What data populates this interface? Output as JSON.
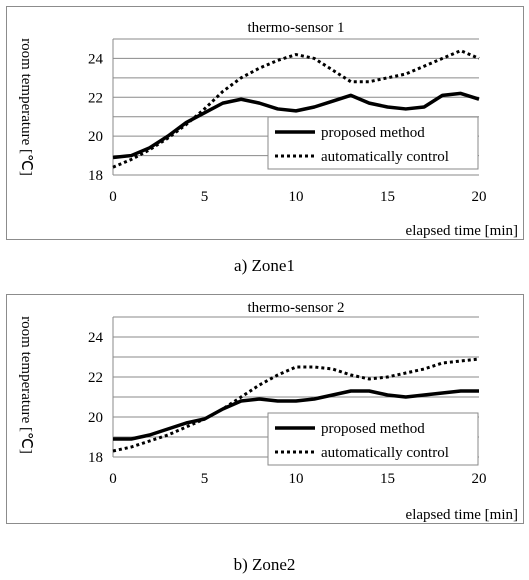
{
  "figure": {
    "captions": [
      "a) Zone1",
      "b) Zone2"
    ]
  },
  "chart_data": [
    {
      "type": "line",
      "title": "thermo-sensor 1",
      "xlabel": "elapsed time [min]",
      "ylabel": "room temperature [℃]",
      "xlim": [
        0,
        20
      ],
      "ylim": [
        18,
        25
      ],
      "xticks": [
        0,
        5,
        10,
        15,
        20
      ],
      "yticks": [
        18,
        20,
        22,
        24
      ],
      "grid": "horizontal",
      "legend_position": "lower-right",
      "x": [
        0,
        1,
        2,
        3,
        4,
        5,
        6,
        7,
        8,
        9,
        10,
        11,
        12,
        13,
        14,
        15,
        16,
        17,
        18,
        19,
        20
      ],
      "series": [
        {
          "name": "proposed method",
          "style": "solid",
          "values": [
            18.9,
            19.0,
            19.4,
            20.0,
            20.7,
            21.2,
            21.7,
            21.9,
            21.7,
            21.4,
            21.3,
            21.5,
            21.8,
            22.1,
            21.7,
            21.5,
            21.4,
            21.5,
            22.1,
            22.2,
            21.9
          ]
        },
        {
          "name": "automatically control",
          "style": "dotted",
          "values": [
            18.4,
            18.8,
            19.3,
            19.9,
            20.6,
            21.4,
            22.3,
            23.0,
            23.5,
            23.9,
            24.2,
            24.0,
            23.4,
            22.8,
            22.8,
            23.0,
            23.2,
            23.6,
            24.0,
            24.4,
            24.0
          ]
        }
      ]
    },
    {
      "type": "line",
      "title": "thermo-sensor 2",
      "xlabel": "elapsed time [min]",
      "ylabel": "room temperature [℃]",
      "xlim": [
        0,
        20
      ],
      "ylim": [
        18,
        25
      ],
      "xticks": [
        0,
        5,
        10,
        15,
        20
      ],
      "yticks": [
        18,
        20,
        22,
        24
      ],
      "grid": "horizontal",
      "legend_position": "lower-right",
      "x": [
        0,
        1,
        2,
        3,
        4,
        5,
        6,
        7,
        8,
        9,
        10,
        11,
        12,
        13,
        14,
        15,
        16,
        17,
        18,
        19,
        20
      ],
      "series": [
        {
          "name": "proposed method",
          "style": "solid",
          "values": [
            18.9,
            18.9,
            19.1,
            19.4,
            19.7,
            19.9,
            20.4,
            20.8,
            20.9,
            20.8,
            20.8,
            20.9,
            21.1,
            21.3,
            21.3,
            21.1,
            21.0,
            21.1,
            21.2,
            21.3,
            21.3
          ]
        },
        {
          "name": "automatically control",
          "style": "dotted",
          "values": [
            18.3,
            18.5,
            18.8,
            19.1,
            19.5,
            19.9,
            20.4,
            21.0,
            21.6,
            22.1,
            22.5,
            22.5,
            22.4,
            22.1,
            21.9,
            22.0,
            22.2,
            22.4,
            22.7,
            22.8,
            22.9
          ]
        }
      ]
    }
  ]
}
